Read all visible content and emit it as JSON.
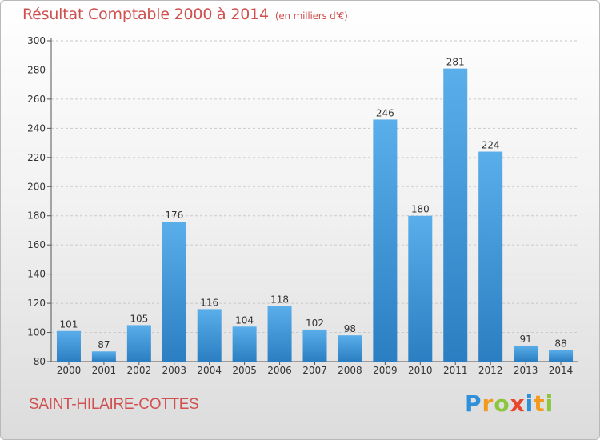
{
  "header": {
    "title": "Résultat Comptable 2000 à 2014",
    "subtitle": "(en milliers d'€)"
  },
  "footer": {
    "commune": "SAINT-HILAIRE-COTTES",
    "logo_letters": [
      {
        "ch": "P",
        "color": "#2f8fd8"
      },
      {
        "ch": "r",
        "color": "#f39a1e"
      },
      {
        "ch": "o",
        "color": "#8cc63f"
      },
      {
        "ch": "x",
        "color": "#e8452c"
      },
      {
        "ch": "i",
        "color": "#2f8fd8"
      },
      {
        "ch": "t",
        "color": "#f39a1e"
      },
      {
        "ch": "i",
        "color": "#8cc63f"
      }
    ]
  },
  "chart_data": {
    "type": "bar",
    "categories": [
      "2000",
      "2001",
      "2002",
      "2003",
      "2004",
      "2005",
      "2006",
      "2007",
      "2008",
      "2009",
      "2010",
      "2011",
      "2012",
      "2013",
      "2014"
    ],
    "values": [
      101,
      87,
      105,
      176,
      116,
      104,
      118,
      102,
      98,
      246,
      180,
      281,
      224,
      91,
      88
    ],
    "ylim": [
      80,
      300
    ],
    "yticks": [
      80,
      100,
      120,
      140,
      160,
      180,
      200,
      220,
      240,
      260,
      280,
      300
    ],
    "grid": true,
    "bar_color_light": "#5aaeea",
    "bar_color_dark": "#2b7ec1"
  }
}
